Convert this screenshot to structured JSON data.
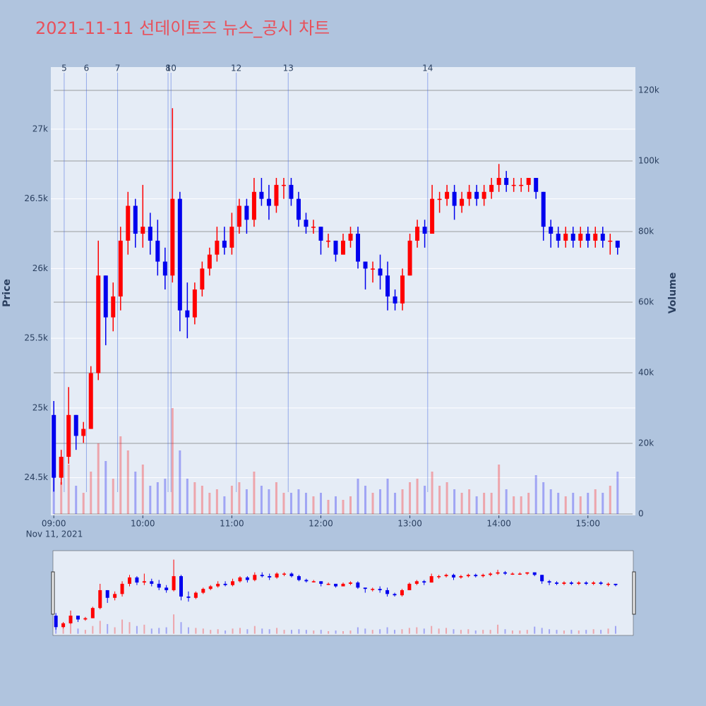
{
  "chart_data": {
    "type": "candlestick",
    "title": "2021-11-11 선데이토즈 뉴스_공시 차트",
    "x": [
      "09:00",
      "09:05",
      "09:10",
      "09:15",
      "09:20",
      "09:25",
      "09:30",
      "09:35",
      "09:40",
      "09:45",
      "09:50",
      "09:55",
      "10:00",
      "10:05",
      "10:10",
      "10:15",
      "10:20",
      "10:25",
      "10:30",
      "10:35",
      "10:40",
      "10:45",
      "10:50",
      "10:55",
      "11:00",
      "11:05",
      "11:10",
      "11:15",
      "11:20",
      "11:25",
      "11:30",
      "11:35",
      "11:40",
      "11:45",
      "11:50",
      "11:55",
      "12:00",
      "12:05",
      "12:10",
      "12:15",
      "12:20",
      "12:25",
      "12:30",
      "12:35",
      "12:40",
      "12:45",
      "12:50",
      "12:55",
      "13:00",
      "13:05",
      "13:10",
      "13:15",
      "13:20",
      "13:25",
      "13:30",
      "13:35",
      "13:40",
      "13:45",
      "13:50",
      "13:55",
      "14:00",
      "14:05",
      "14:10",
      "14:15",
      "14:20",
      "14:25",
      "14:30",
      "14:35",
      "14:40",
      "14:45",
      "14:50",
      "14:55",
      "15:00",
      "15:05",
      "15:10",
      "15:15",
      "15:20"
    ],
    "open": [
      24950,
      24500,
      24650,
      24950,
      24800,
      24850,
      25250,
      25950,
      25650,
      25800,
      26200,
      26450,
      26250,
      26300,
      26200,
      26050,
      25950,
      26500,
      25700,
      25650,
      25850,
      26000,
      26100,
      26200,
      26150,
      26300,
      26450,
      26350,
      26550,
      26500,
      26450,
      26600,
      26600,
      26500,
      26350,
      26300,
      26300,
      26200,
      26200,
      26100,
      26200,
      26250,
      26050,
      26000,
      26000,
      25950,
      25800,
      25750,
      25950,
      26200,
      26300,
      26250,
      26500,
      26500,
      26550,
      26450,
      26500,
      26550,
      26500,
      26550,
      26600,
      26650,
      26600,
      26600,
      26600,
      26650,
      26550,
      26300,
      26250,
      26200,
      26250,
      26200,
      26250,
      26200,
      26250,
      26200,
      26200
    ],
    "high": [
      25050,
      24700,
      25150,
      24950,
      24900,
      25300,
      26200,
      25950,
      25900,
      26300,
      26550,
      26500,
      26600,
      26400,
      26350,
      26150,
      27150,
      26550,
      25900,
      25900,
      26050,
      26150,
      26300,
      26300,
      26400,
      26500,
      26500,
      26650,
      26650,
      26600,
      26650,
      26650,
      26650,
      26550,
      26400,
      26350,
      26300,
      26250,
      26200,
      26250,
      26300,
      26300,
      26050,
      26050,
      26100,
      26050,
      25850,
      26000,
      26250,
      26350,
      26350,
      26600,
      26550,
      26600,
      26600,
      26550,
      26600,
      26600,
      26600,
      26650,
      26750,
      26700,
      26650,
      26650,
      26650,
      26650,
      26550,
      26350,
      26300,
      26300,
      26300,
      26300,
      26300,
      26300,
      26300,
      26250,
      26200
    ],
    "low": [
      24400,
      24450,
      24600,
      24700,
      24750,
      24850,
      25200,
      25450,
      25550,
      25700,
      26100,
      26150,
      26150,
      26100,
      25950,
      25850,
      25900,
      25550,
      25500,
      25600,
      25800,
      25950,
      26050,
      26100,
      26100,
      26250,
      26250,
      26300,
      26450,
      26350,
      26400,
      26500,
      26450,
      26300,
      26250,
      26250,
      26100,
      26150,
      26050,
      26100,
      26150,
      26000,
      25850,
      25900,
      25850,
      25700,
      25700,
      25700,
      25950,
      26150,
      26150,
      26250,
      26400,
      26450,
      26350,
      26400,
      26450,
      26450,
      26450,
      26500,
      26550,
      26550,
      26550,
      26550,
      26550,
      26500,
      26200,
      26150,
      26150,
      26150,
      26150,
      26150,
      26150,
      26150,
      26150,
      26100,
      26100
    ],
    "close": [
      24500,
      24650,
      24950,
      24800,
      24850,
      25250,
      25950,
      25650,
      25800,
      26200,
      26450,
      26250,
      26300,
      26200,
      26050,
      25950,
      26500,
      25700,
      25650,
      25850,
      26000,
      26100,
      26200,
      26150,
      26300,
      26450,
      26350,
      26550,
      26500,
      26450,
      26600,
      26600,
      26500,
      26350,
      26300,
      26300,
      26200,
      26200,
      26100,
      26200,
      26250,
      26050,
      26000,
      26000,
      25950,
      25800,
      25750,
      25950,
      26200,
      26300,
      26250,
      26500,
      26500,
      26550,
      26450,
      26500,
      26550,
      26500,
      26550,
      26600,
      26650,
      26600,
      26600,
      26600,
      26650,
      26550,
      26300,
      26250,
      26200,
      26250,
      26200,
      26250,
      26200,
      26250,
      26200,
      26200,
      26150
    ],
    "volume": [
      28000,
      9000,
      14000,
      8000,
      6000,
      12000,
      20000,
      15000,
      10000,
      22000,
      18000,
      12000,
      14000,
      8000,
      9000,
      10000,
      30000,
      18000,
      10000,
      9000,
      8000,
      6000,
      7000,
      5000,
      8000,
      9000,
      7000,
      12000,
      8000,
      7000,
      9000,
      6000,
      6000,
      7000,
      6000,
      5000,
      6000,
      4000,
      5000,
      4000,
      5000,
      10000,
      8000,
      6000,
      7000,
      10000,
      6000,
      7000,
      9000,
      10000,
      8000,
      12000,
      8000,
      9000,
      7000,
      6000,
      7000,
      5000,
      6000,
      6000,
      14000,
      7000,
      5000,
      5000,
      6000,
      11000,
      9000,
      7000,
      6000,
      5000,
      6000,
      5000,
      6000,
      7000,
      6000,
      8000,
      12000
    ],
    "increasing_color": "#ff0000",
    "decreasing_color": "#0000ee",
    "xlim": [
      "08:58",
      "15:32"
    ],
    "xticks": [
      "09:00",
      "10:00",
      "11:00",
      "12:00",
      "13:00",
      "14:00",
      "15:00"
    ],
    "date_label": "Nov 11, 2021",
    "ylabel": "Price",
    "ylim": [
      24230,
      27445
    ],
    "yticks": [
      {
        "value": 24500,
        "label": "24.5k"
      },
      {
        "value": 25000,
        "label": "25k"
      },
      {
        "value": 25500,
        "label": "25.5k"
      },
      {
        "value": 26000,
        "label": "26k"
      },
      {
        "value": 26500,
        "label": "26.5k"
      },
      {
        "value": 27000,
        "label": "27k"
      }
    ],
    "y2label": "Volume",
    "y2lim": [
      -400,
      126600
    ],
    "y2ticks": [
      0,
      {
        "value": 20000,
        "label": "20k"
      },
      {
        "value": 40000,
        "label": "40k"
      },
      {
        "value": 60000,
        "label": "60k"
      },
      {
        "value": 80000,
        "label": "80k"
      },
      {
        "value": 100000,
        "label": "100k"
      },
      {
        "value": 120000,
        "label": "120k"
      }
    ],
    "news_markers": [
      {
        "label": "5",
        "x": "09:07"
      },
      {
        "label": "6",
        "x": "09:22"
      },
      {
        "label": "7",
        "x": "09:43"
      },
      {
        "label": "8",
        "x": "10:17"
      },
      {
        "label": "10",
        "x": "10:19"
      },
      {
        "label": "12",
        "x": "11:03"
      },
      {
        "label": "13",
        "x": "11:38"
      },
      {
        "label": "14",
        "x": "13:12"
      }
    ],
    "grid": true,
    "rangeslider": true
  }
}
